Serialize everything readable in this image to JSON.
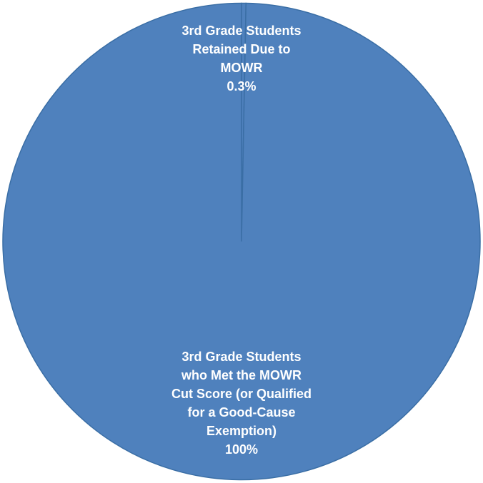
{
  "chart_data": {
    "type": "pie",
    "title": "",
    "slices": [
      {
        "label_lines": [
          "3rd Grade Students",
          "Retained Due to",
          "MOWR"
        ],
        "value": 0.3,
        "value_label": "0.3%",
        "color": "#4f81bd"
      },
      {
        "label_lines": [
          "3rd Grade Students",
          "who  Met the MOWR",
          "Cut Score (or Qualified",
          "for a Good-Cause",
          "Exemption)"
        ],
        "value": 100,
        "value_label": "100%",
        "color": "#4f81bd"
      }
    ],
    "border_color": "#3a6ea5",
    "label_color": "#ffffff",
    "legend": "none"
  }
}
